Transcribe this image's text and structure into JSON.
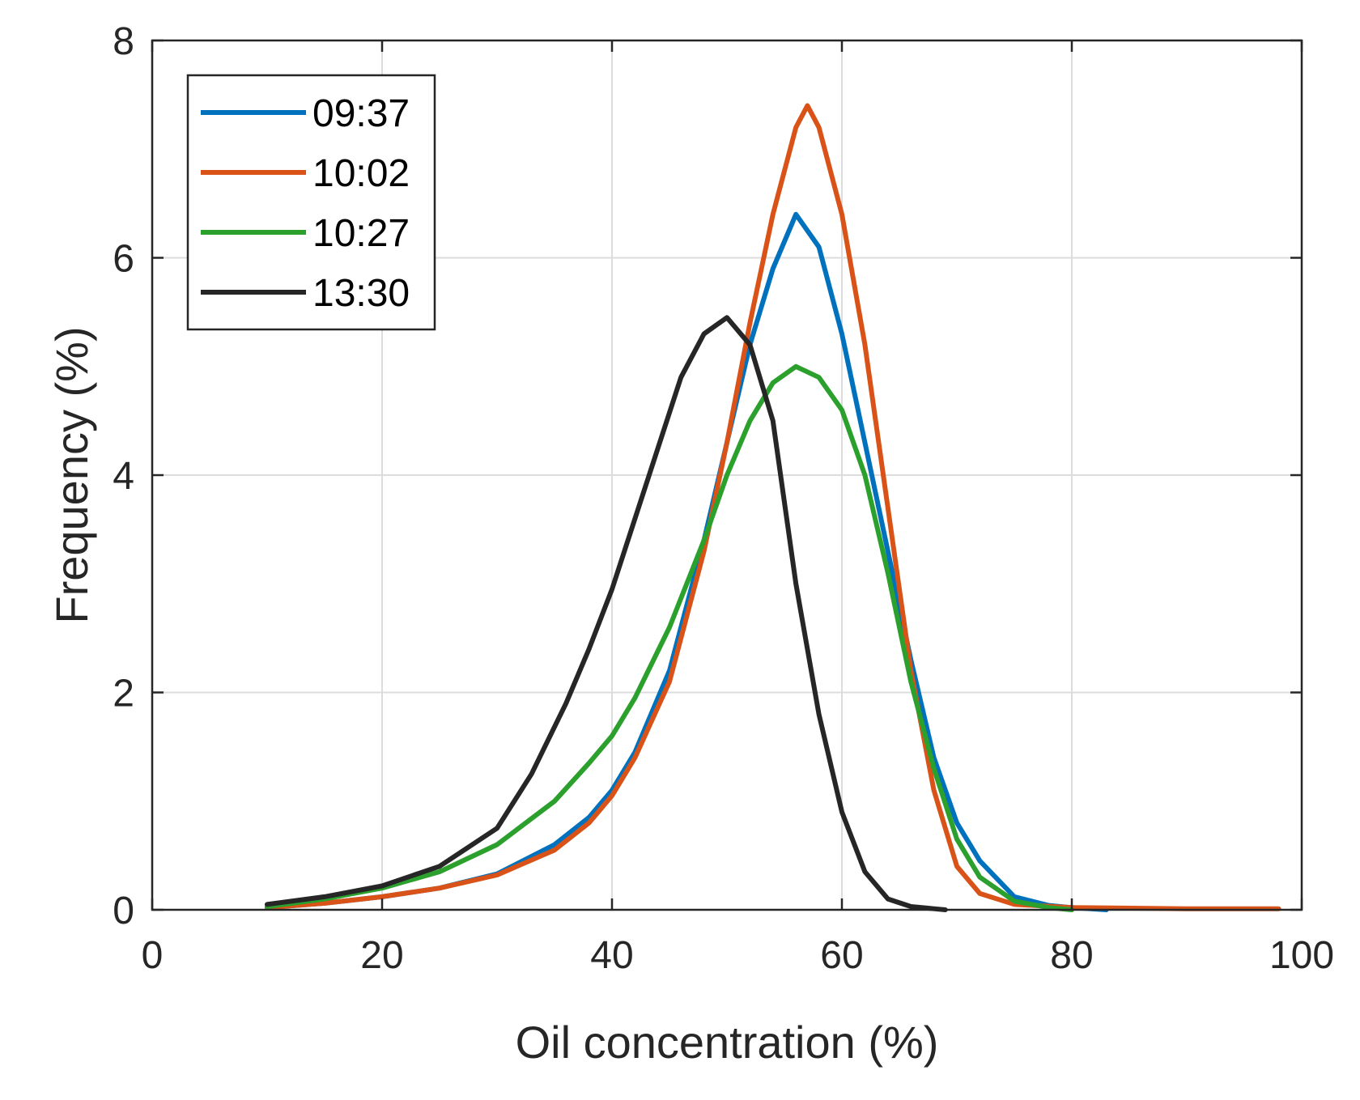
{
  "chart_data": {
    "type": "line",
    "title": "",
    "xlabel": "Oil concentration (%)",
    "ylabel": "Frequency (%)",
    "xlim": [
      0,
      100
    ],
    "ylim": [
      0,
      8
    ],
    "xticks": [
      0,
      20,
      40,
      60,
      80,
      100
    ],
    "yticks": [
      0,
      2,
      4,
      6,
      8
    ],
    "grid": true,
    "legend_position": "top-left",
    "series": [
      {
        "name": "09:37",
        "color": "#0072BD",
        "x": [
          10,
          15,
          20,
          25,
          30,
          35,
          38,
          40,
          42,
          45,
          48,
          50,
          52,
          54,
          56,
          58,
          60,
          62,
          64,
          66,
          68,
          70,
          72,
          75,
          78,
          80,
          83
        ],
        "y": [
          0.02,
          0.06,
          0.12,
          0.2,
          0.33,
          0.6,
          0.85,
          1.1,
          1.45,
          2.2,
          3.4,
          4.3,
          5.2,
          5.9,
          6.4,
          6.1,
          5.3,
          4.3,
          3.3,
          2.3,
          1.4,
          0.8,
          0.45,
          0.12,
          0.04,
          0.02,
          0.0
        ]
      },
      {
        "name": "10:02",
        "color": "#D95319",
        "x": [
          10,
          15,
          20,
          25,
          30,
          35,
          38,
          40,
          42,
          45,
          48,
          50,
          52,
          54,
          56,
          57,
          58,
          60,
          62,
          64,
          66,
          68,
          70,
          72,
          75,
          80,
          90,
          98
        ],
        "y": [
          0.02,
          0.06,
          0.12,
          0.2,
          0.32,
          0.55,
          0.8,
          1.05,
          1.4,
          2.1,
          3.3,
          4.3,
          5.4,
          6.4,
          7.2,
          7.4,
          7.2,
          6.4,
          5.2,
          3.7,
          2.2,
          1.1,
          0.4,
          0.15,
          0.05,
          0.02,
          0.01,
          0.01
        ]
      },
      {
        "name": "10:27",
        "color": "#2CA02C",
        "x": [
          10,
          15,
          20,
          25,
          30,
          35,
          38,
          40,
          42,
          45,
          48,
          50,
          52,
          54,
          56,
          58,
          60,
          62,
          64,
          66,
          68,
          70,
          72,
          75,
          78,
          80
        ],
        "y": [
          0.03,
          0.1,
          0.2,
          0.35,
          0.6,
          1.0,
          1.35,
          1.6,
          1.95,
          2.6,
          3.4,
          4.0,
          4.5,
          4.85,
          5.0,
          4.9,
          4.6,
          4.0,
          3.1,
          2.1,
          1.3,
          0.65,
          0.3,
          0.08,
          0.02,
          0.0
        ]
      },
      {
        "name": "13:30",
        "color": "#262626",
        "x": [
          10,
          15,
          20,
          25,
          30,
          33,
          36,
          38,
          40,
          42,
          44,
          46,
          48,
          50,
          52,
          54,
          56,
          58,
          60,
          62,
          64,
          66,
          68,
          69
        ],
        "y": [
          0.05,
          0.12,
          0.22,
          0.4,
          0.75,
          1.25,
          1.9,
          2.4,
          2.95,
          3.6,
          4.25,
          4.9,
          5.3,
          5.45,
          5.2,
          4.5,
          3.0,
          1.8,
          0.9,
          0.35,
          0.1,
          0.03,
          0.01,
          0.0
        ]
      }
    ]
  }
}
